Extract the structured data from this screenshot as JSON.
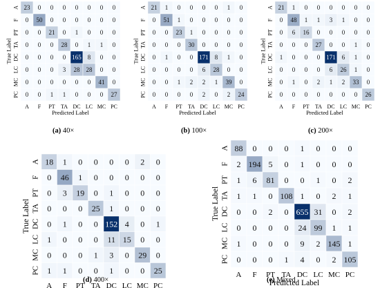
{
  "classes": [
    "A",
    "F",
    "PT",
    "TA",
    "DC",
    "LC",
    "MC",
    "PC"
  ],
  "axis_labels": {
    "x": "Predicted Label",
    "y": "True Label"
  },
  "colors": {
    "cell_min": "#f7fbff",
    "cell_max": "#08306b",
    "text_dark": "#111111",
    "text_light": "#ffffff"
  },
  "chart_data": [
    {
      "type": "heatmap",
      "caption_tag": "(a)",
      "caption_text": " 40×",
      "xlabel": "Predicted Label",
      "ylabel": "True Label",
      "categories": [
        "A",
        "F",
        "PT",
        "TA",
        "DC",
        "LC",
        "MC",
        "PC"
      ],
      "matrix": [
        [
          23,
          0,
          0,
          0,
          0,
          0,
          0,
          0
        ],
        [
          0,
          50,
          0,
          0,
          0,
          0,
          0,
          0
        ],
        [
          0,
          0,
          21,
          0,
          1,
          0,
          0,
          0
        ],
        [
          0,
          0,
          0,
          28,
          0,
          1,
          1,
          0
        ],
        [
          0,
          0,
          0,
          0,
          165,
          8,
          0,
          0
        ],
        [
          0,
          0,
          0,
          3,
          28,
          28,
          0,
          0
        ],
        [
          0,
          0,
          0,
          0,
          0,
          0,
          41,
          0
        ],
        [
          0,
          0,
          1,
          1,
          0,
          0,
          0,
          27
        ]
      ]
    },
    {
      "type": "heatmap",
      "caption_tag": "(b)",
      "caption_text": " 100×",
      "xlabel": "Predicted Label",
      "ylabel": "True Label",
      "categories": [
        "A",
        "F",
        "PT",
        "TA",
        "DC",
        "LC",
        "MC",
        "PC"
      ],
      "matrix": [
        [
          21,
          1,
          0,
          0,
          0,
          0,
          1,
          0
        ],
        [
          0,
          51,
          1,
          0,
          0,
          0,
          0,
          0
        ],
        [
          0,
          0,
          23,
          1,
          0,
          0,
          0,
          0
        ],
        [
          0,
          0,
          0,
          30,
          0,
          0,
          0,
          0
        ],
        [
          0,
          1,
          0,
          0,
          171,
          8,
          1,
          0
        ],
        [
          0,
          0,
          0,
          0,
          6,
          28,
          0,
          0
        ],
        [
          0,
          0,
          1,
          2,
          2,
          1,
          39,
          0
        ],
        [
          0,
          0,
          0,
          0,
          2,
          0,
          2,
          24
        ]
      ]
    },
    {
      "type": "heatmap",
      "caption_tag": "(c)",
      "caption_text": " 200×",
      "xlabel": "Predicted Label",
      "ylabel": "True Label",
      "categories": [
        "A",
        "F",
        "PT",
        "TA",
        "DC",
        "LC",
        "MC",
        "PC"
      ],
      "matrix": [
        [
          21,
          1,
          0,
          0,
          0,
          0,
          0,
          0
        ],
        [
          0,
          48,
          1,
          1,
          3,
          1,
          0,
          0
        ],
        [
          0,
          6,
          16,
          0,
          0,
          0,
          0,
          0
        ],
        [
          0,
          0,
          0,
          27,
          0,
          0,
          1,
          0
        ],
        [
          1,
          0,
          0,
          0,
          171,
          6,
          1,
          0
        ],
        [
          0,
          0,
          0,
          0,
          6,
          26,
          1,
          0
        ],
        [
          0,
          1,
          0,
          2,
          1,
          2,
          33,
          0
        ],
        [
          0,
          0,
          0,
          0,
          0,
          0,
          0,
          26
        ]
      ]
    },
    {
      "type": "heatmap",
      "caption_tag": "(d)",
      "caption_text": " 400×",
      "xlabel": "Predicted Label",
      "ylabel": "True Label",
      "categories": [
        "A",
        "F",
        "PT",
        "TA",
        "DC",
        "LC",
        "MC",
        "PC"
      ],
      "matrix": [
        [
          18,
          1,
          0,
          0,
          0,
          0,
          2,
          0
        ],
        [
          0,
          46,
          1,
          0,
          0,
          0,
          0,
          0
        ],
        [
          0,
          3,
          19,
          0,
          1,
          0,
          0,
          0
        ],
        [
          0,
          0,
          0,
          25,
          1,
          0,
          0,
          0
        ],
        [
          0,
          1,
          0,
          0,
          152,
          4,
          0,
          1
        ],
        [
          1,
          0,
          0,
          0,
          11,
          15,
          0,
          0
        ],
        [
          0,
          0,
          0,
          1,
          3,
          0,
          29,
          0
        ],
        [
          1,
          1,
          0,
          0,
          1,
          0,
          0,
          25
        ]
      ]
    },
    {
      "type": "heatmap",
      "caption_tag": "(e)",
      "caption_text": " Mixed",
      "xlabel": "Predicted Label",
      "ylabel": "True Label",
      "categories": [
        "A",
        "F",
        "PT",
        "TA",
        "DC",
        "LC",
        "MC",
        "PC"
      ],
      "matrix": [
        [
          88,
          0,
          0,
          0,
          1,
          0,
          0,
          0
        ],
        [
          2,
          194,
          5,
          0,
          1,
          0,
          0,
          0
        ],
        [
          1,
          6,
          81,
          0,
          0,
          1,
          0,
          2
        ],
        [
          1,
          1,
          0,
          108,
          1,
          0,
          2,
          1
        ],
        [
          0,
          0,
          2,
          0,
          655,
          31,
          0,
          2
        ],
        [
          0,
          0,
          0,
          0,
          24,
          99,
          1,
          1
        ],
        [
          1,
          0,
          0,
          0,
          9,
          2,
          145,
          1
        ],
        [
          0,
          0,
          0,
          1,
          4,
          0,
          2,
          105
        ]
      ]
    }
  ]
}
